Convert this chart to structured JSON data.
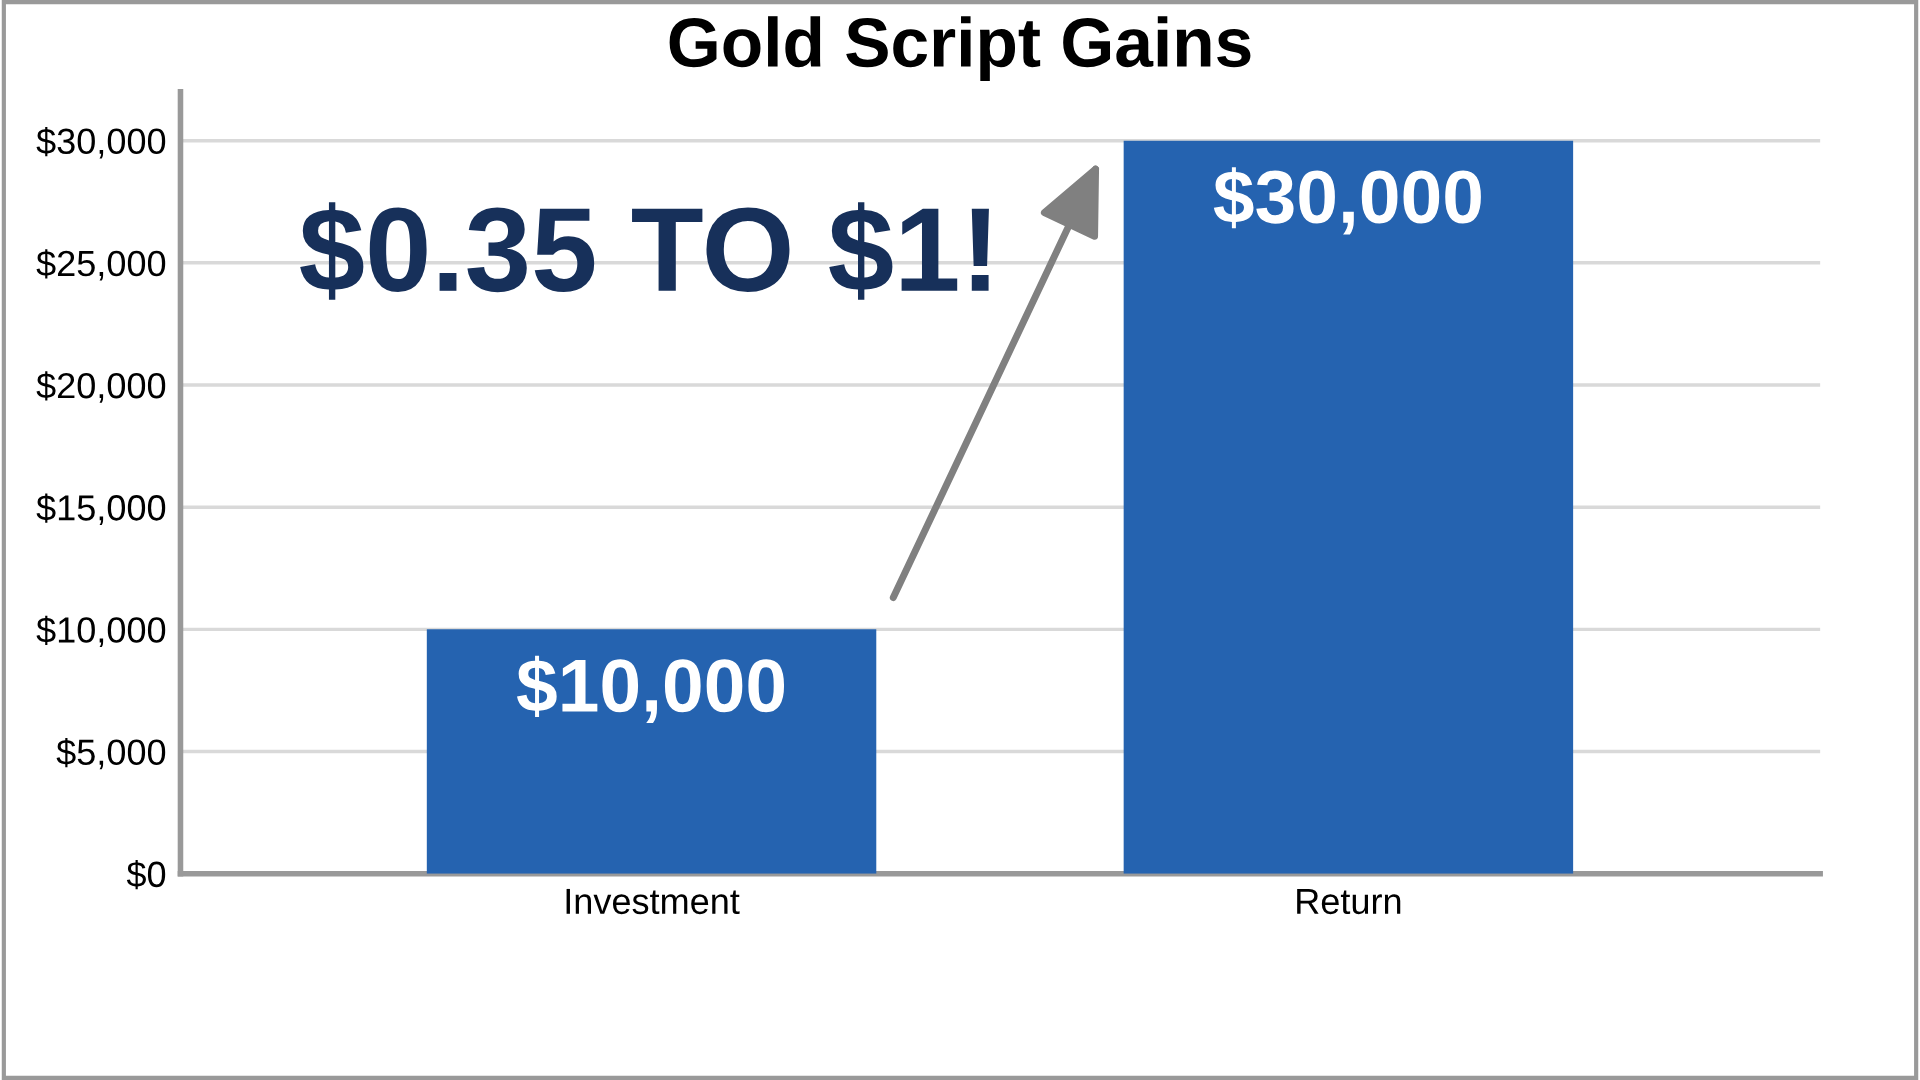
{
  "chart_data": {
    "type": "bar",
    "title": "Gold Script Gains",
    "categories": [
      "Investment",
      "Return"
    ],
    "values": [
      10000,
      30000
    ],
    "color": "#2563b0",
    "ylim": [
      0,
      32000
    ],
    "yticks": [
      {
        "value": 0,
        "label": "$0"
      },
      {
        "value": 5000,
        "label": "$5,000"
      },
      {
        "value": 10000,
        "label": "$10,000"
      },
      {
        "value": 15000,
        "label": "$15,000"
      },
      {
        "value": 20000,
        "label": "$20,000"
      },
      {
        "value": 25000,
        "label": "$25,000"
      },
      {
        "value": 30000,
        "label": "$30,000"
      }
    ],
    "value_labels": [
      "$10,000",
      "$30,000"
    ],
    "annotations": [
      "$0.35 TO $1!"
    ],
    "grid": "y",
    "legend": false
  }
}
